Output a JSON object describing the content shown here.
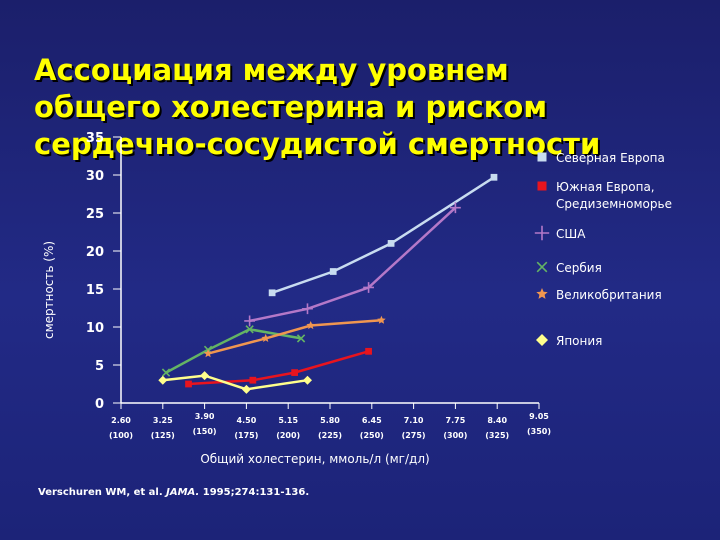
{
  "slide": {
    "title": "Ассоциация между уровнем\nобщего холестерина и риском\nсердечно-сосудистой смертности",
    "citation_authors": "Verschuren WM, et al.",
    "citation_journal": "JAMA.",
    "citation_details": "1995;274:131-136."
  },
  "chart_data": {
    "type": "line",
    "xlabel": "Общий холестерин, ммоль/л (мг/дл)",
    "ylabel": "смертность (%)",
    "ylim": [
      0,
      35
    ],
    "yticks": [
      0,
      5,
      10,
      15,
      20,
      25,
      30,
      35
    ],
    "ytick_labels": [
      "0",
      "5",
      "10",
      "15",
      "20",
      "25",
      "30",
      "35"
    ],
    "categories": [
      "2.60",
      "3.25",
      "3.90",
      "4.50",
      "5.15",
      "5.80",
      "6.45",
      "7.10",
      "7.75",
      "8.40",
      "9.05"
    ],
    "category_sublabels": [
      "(100)",
      "(125)",
      "(150)",
      "(175)",
      "(200)",
      "(225)",
      "(250)",
      "(275)",
      "(300)",
      "(325)",
      "(350)"
    ],
    "grid": false,
    "legend_position": "right",
    "series": [
      {
        "name": "Северная Европа",
        "color": "#c8dcf0",
        "marker": "square",
        "points": [
          [
            4.9,
            14.5
          ],
          [
            5.85,
            17.3
          ],
          [
            6.75,
            21.0
          ],
          [
            8.35,
            29.7
          ]
        ]
      },
      {
        "name": "Южная Европа, Средиземноморье",
        "color": "#e8141e",
        "marker": "square",
        "points": [
          [
            3.65,
            2.5
          ],
          [
            4.6,
            3.0
          ],
          [
            5.25,
            4.0
          ],
          [
            6.4,
            6.8
          ]
        ]
      },
      {
        "name": "США",
        "color": "#b478c8",
        "marker": "plus",
        "points": [
          [
            4.55,
            10.8
          ],
          [
            5.45,
            12.4
          ],
          [
            6.4,
            15.2
          ],
          [
            7.75,
            25.7
          ]
        ]
      },
      {
        "name": "Сербия",
        "color": "#64b464",
        "marker": "x",
        "points": [
          [
            3.3,
            4.0
          ],
          [
            3.95,
            7.0
          ],
          [
            4.55,
            9.7
          ],
          [
            5.35,
            8.5
          ]
        ]
      },
      {
        "name": "Великобритания",
        "color": "#f09650",
        "marker": "star",
        "points": [
          [
            3.95,
            6.5
          ],
          [
            4.8,
            8.5
          ],
          [
            5.5,
            10.2
          ],
          [
            6.6,
            10.9
          ]
        ]
      },
      {
        "name": "Япония",
        "color": "#ffff8c",
        "marker": "diamond",
        "points": [
          [
            3.25,
            3.0
          ],
          [
            3.9,
            3.6
          ],
          [
            4.5,
            1.8
          ],
          [
            5.45,
            3.0
          ]
        ]
      }
    ]
  }
}
